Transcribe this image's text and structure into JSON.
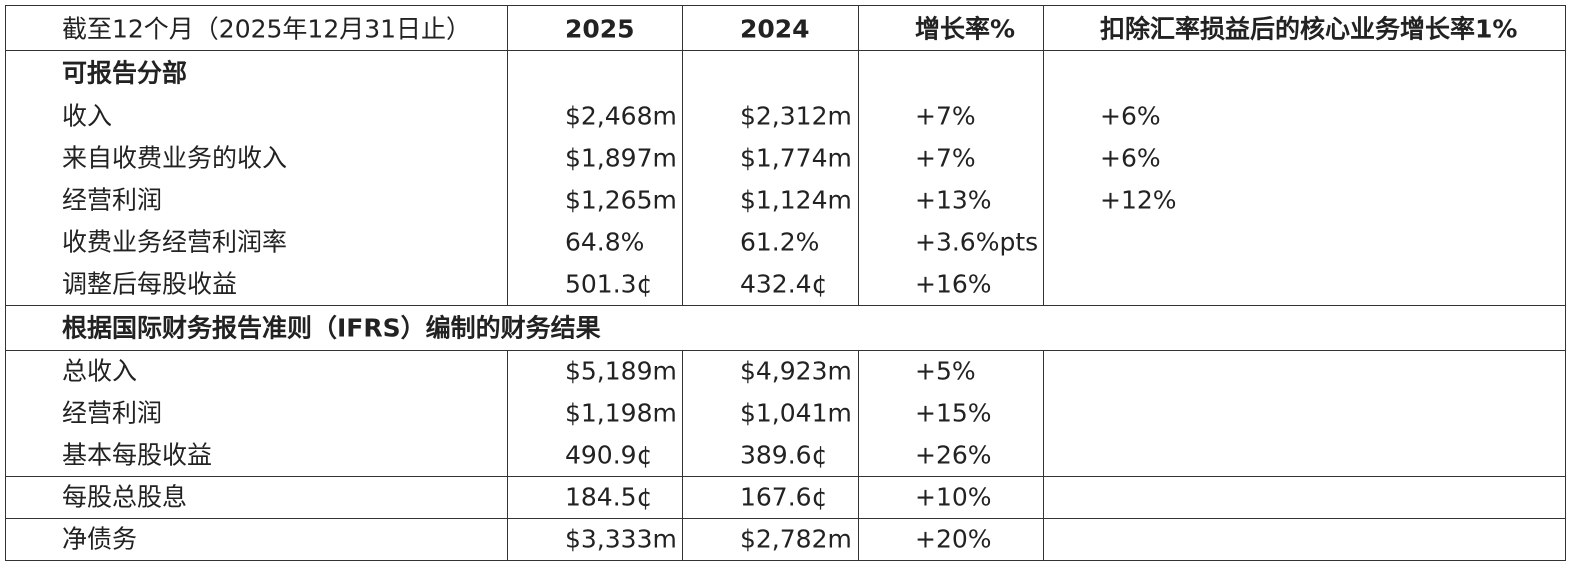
{
  "header": [
    "截至12个月（2025年12月31日止）",
    "2025",
    "2024",
    "增长率%",
    "扣除汇率损益后的核心业务增长率1%"
  ],
  "sections": [
    {
      "title": "可报告分部",
      "groups": [
        [
          [
            "收入",
            "$2,468m",
            "$2,312m",
            "+7%",
            "+6%"
          ],
          [
            "来自收费业务的收入",
            "$1,897m",
            "$1,774m",
            "+7%",
            "+6%"
          ],
          [
            "经营利润",
            "$1,265m",
            "$1,124m",
            "+13%",
            "+12%"
          ],
          [
            "收费业务经营利润率",
            "64.8%",
            "61.2%",
            "+3.6%pts"
          ],
          [
            "调整后每股收益",
            "501.3¢",
            "432.4¢",
            "+16%"
          ]
        ]
      ]
    },
    {
      "title": "根据国际财务报告准则（IFRS）编制的财务结果",
      "groups": [
        [
          [
            "总收入",
            "$5,189m",
            "$4,923m",
            "+5%"
          ],
          [
            "经营利润",
            "$1,198m",
            "$1,041m",
            "+15%"
          ],
          [
            "基本每股收益",
            "490.9¢",
            "389.6¢",
            "+26%"
          ]
        ],
        [
          [
            "每股总股息",
            "184.5¢",
            "167.6¢",
            "+10%"
          ]
        ],
        [
          [
            "净债务",
            "$3,333m",
            "$2,782m",
            "+20%"
          ]
        ]
      ]
    }
  ]
}
